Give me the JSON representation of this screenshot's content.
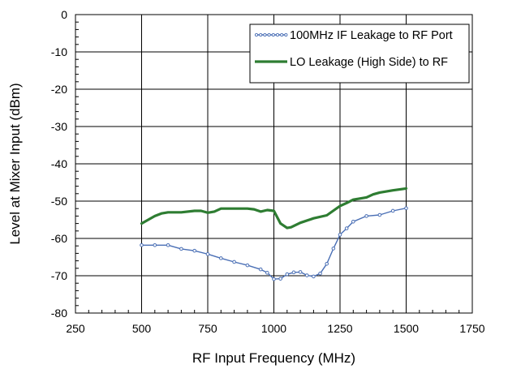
{
  "chart_data": {
    "type": "line",
    "title": "",
    "xlabel": "RF Input Frequency (MHz)",
    "ylabel": "Level at Mixer Input (dBm)",
    "xlim": [
      250,
      1750
    ],
    "ylim": [
      -80,
      0
    ],
    "xticks": [
      250,
      500,
      750,
      1000,
      1250,
      1500,
      1750
    ],
    "yticks": [
      0,
      -10,
      -20,
      -30,
      -40,
      -50,
      -60,
      -70,
      -80
    ],
    "xtick_labels": [
      "250",
      "500",
      "750",
      "1000",
      "1250",
      "1500",
      "1750"
    ],
    "ytick_labels": [
      "0",
      "-10",
      "-20",
      "-30",
      "-40",
      "-50",
      "-60",
      "-70",
      "-80"
    ],
    "grid": true,
    "legend_position": "top-right",
    "series": [
      {
        "name": "100MHz IF Leakage to RF Port",
        "color": "#4a6fb5",
        "style": "thin line with small open markers",
        "x": [
          500,
          550,
          600,
          650,
          700,
          750,
          800,
          850,
          900,
          950,
          975,
          1000,
          1025,
          1050,
          1075,
          1100,
          1125,
          1150,
          1175,
          1200,
          1225,
          1250,
          1275,
          1300,
          1350,
          1400,
          1450,
          1500
        ],
        "y": [
          -61.8,
          -61.8,
          -61.8,
          -62.8,
          -63.3,
          -64.2,
          -65.3,
          -66.3,
          -67.2,
          -68.3,
          -69.2,
          -70.9,
          -70.8,
          -69.6,
          -69.1,
          -69.0,
          -69.9,
          -70.2,
          -69.4,
          -66.8,
          -62.7,
          -59.0,
          -57.3,
          -55.5,
          -54.0,
          -53.7,
          -52.6,
          -51.9
        ]
      },
      {
        "name": "LO Leakage (High Side) to RF",
        "color": "#2e7d32",
        "style": "thick solid line",
        "x": [
          500,
          525,
          550,
          575,
          600,
          650,
          700,
          725,
          750,
          775,
          800,
          850,
          900,
          925,
          950,
          975,
          1000,
          1025,
          1050,
          1065,
          1100,
          1150,
          1200,
          1250,
          1275,
          1300,
          1350,
          1375,
          1400,
          1450,
          1500
        ],
        "y": [
          -56.0,
          -55.0,
          -54.0,
          -53.3,
          -53.0,
          -53.0,
          -52.6,
          -52.6,
          -53.1,
          -52.8,
          -52.0,
          -52.0,
          -52.0,
          -52.2,
          -52.8,
          -52.4,
          -52.6,
          -56.0,
          -57.2,
          -57.0,
          -55.8,
          -54.6,
          -53.8,
          -51.3,
          -50.5,
          -49.6,
          -49.0,
          -48.2,
          -47.7,
          -47.1,
          -46.6
        ]
      }
    ]
  }
}
